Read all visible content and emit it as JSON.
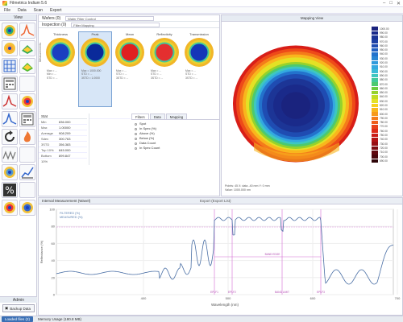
{
  "window": {
    "title": "Filmetrics Indium 5.6",
    "controls": [
      "–",
      "□",
      "✕"
    ]
  },
  "menu": [
    "File",
    "Data",
    "Scan",
    "Export"
  ],
  "sidebar": {
    "header": "View",
    "admin_label": "Admin",
    "backup_label": "Backup Data",
    "tools": [
      {
        "icon": "wafer-map-icon",
        "color": "#2a7"
      },
      {
        "icon": "spectrum-peak-icon",
        "color": "#e63"
      },
      {
        "icon": "wafer-map-icon",
        "color": "#fa3"
      },
      {
        "icon": "surface-3d-icon",
        "color": "#3a5"
      },
      {
        "icon": "grid-map-icon",
        "color": "#36c"
      },
      {
        "icon": "surface-3d-icon",
        "color": "#5b3"
      },
      {
        "icon": "table-icon",
        "color": "#555"
      },
      {
        "icon": "blank-icon",
        "color": "#ccc"
      },
      {
        "icon": "spectrum-small-icon",
        "color": "#c33"
      },
      {
        "icon": "wafer-map-icon",
        "color": "#e33"
      },
      {
        "icon": "spectrum-small-icon",
        "color": "#36c"
      },
      {
        "icon": "calc-icon",
        "color": "#555"
      },
      {
        "icon": "refresh-icon",
        "color": "#333"
      },
      {
        "icon": "flame-icon",
        "color": "#e73"
      },
      {
        "icon": "wave-icon",
        "color": "#777"
      },
      {
        "icon": "blank-icon",
        "color": "#ccc"
      },
      {
        "icon": "wafer-outline-icon",
        "color": "#59c"
      },
      {
        "icon": "chart-icon",
        "color": "#36c"
      },
      {
        "icon": "percent-icon",
        "color": "#333"
      },
      {
        "icon": "blank-icon",
        "color": "#ccc"
      },
      {
        "icon": "wafer-map-icon",
        "color": "#e33"
      },
      {
        "icon": "wafer-map-icon",
        "color": "#36c"
      }
    ]
  },
  "left": {
    "wafers_label": "Wafers (0)",
    "wafer_value": "Wafer Filter Control",
    "inspection_label": "Inspection (0)",
    "inspection_value": "Filter Mapping",
    "side_label": "Measurements",
    "maps": [
      {
        "caption": "Thickness",
        "core": "#1a3fc0",
        "stats": [
          "Max = ...",
          "Min = ...",
          "STD = ..."
        ]
      },
      {
        "caption": "Peak",
        "core": "#0a2a9a",
        "stats": [
          "Max = 1000.000",
          "STD = ...",
          "3STD = 1.0000"
        ]
      },
      {
        "caption": "Mean",
        "core": "#e02020",
        "stats": [
          "Max = ...",
          "STD = ...",
          "3STD = ..."
        ]
      },
      {
        "caption": "Reflectivity",
        "core": "#e33030",
        "stats": [
          "Max = ...",
          "STD = ...",
          "3STD = ..."
        ]
      },
      {
        "caption": "Transmission",
        "core": "#1536b8",
        "stats": [
          "Max = ...",
          "STD = ...",
          "3STD = ..."
        ]
      }
    ],
    "table_header": "Stat",
    "table_rows": [
      {
        "k": "Min",
        "v": "836.000"
      },
      {
        "k": "Max",
        "v": "1.00000"
      },
      {
        "k": "Average",
        "v": "908.209"
      },
      {
        "k": "Sdev",
        "v": "300.763"
      },
      {
        "k": "3STD",
        "v": "356.383"
      },
      {
        "k": "Top 10%",
        "v": "845.000"
      },
      {
        "k": "Bottom 10%",
        "v": "899.847"
      }
    ],
    "tabs": [
      "Filters",
      "Data",
      "Mapping"
    ],
    "options": [
      "Spot",
      "In Spec (%)",
      "Above (%)",
      "Below (%)",
      "Data Count",
      "In Spec Count"
    ]
  },
  "map": {
    "header": "Mapping View",
    "footer": [
      "Points: 45  X: data  -40 mm  Y: 0 mm",
      "Value: 1000.000 nm"
    ],
    "legend": [
      {
        "c": "#1a237e",
        "l": "1000.00"
      },
      {
        "c": "#1a2a8a",
        "l": "990.00"
      },
      {
        "c": "#1c3596",
        "l": "980.00"
      },
      {
        "c": "#1e40a4",
        "l": "970.00"
      },
      {
        "c": "#1f4cb2",
        "l": "960.00"
      },
      {
        "c": "#2160c2",
        "l": "950.00"
      },
      {
        "c": "#2372cc",
        "l": "940.00"
      },
      {
        "c": "#2a86d4",
        "l": "930.00"
      },
      {
        "c": "#2f9adb",
        "l": "920.00"
      },
      {
        "c": "#33a9e0",
        "l": "910.00"
      },
      {
        "c": "#3bbbd8",
        "l": "900.00"
      },
      {
        "c": "#3ec7c0",
        "l": "890.00"
      },
      {
        "c": "#42c99c",
        "l": "880.00"
      },
      {
        "c": "#4cc96f",
        "l": "870.00"
      },
      {
        "c": "#6bcc3e",
        "l": "860.00"
      },
      {
        "c": "#95d22d",
        "l": "850.00"
      },
      {
        "c": "#c0dc26",
        "l": "840.00"
      },
      {
        "c": "#e4e125",
        "l": "830.00"
      },
      {
        "c": "#f7d21f",
        "l": "820.00"
      },
      {
        "c": "#f9b61d",
        "l": "810.00"
      },
      {
        "c": "#f79a1b",
        "l": "800.00"
      },
      {
        "c": "#f47c1a",
        "l": "790.00"
      },
      {
        "c": "#ef5d1a",
        "l": "780.00"
      },
      {
        "c": "#e84019",
        "l": "770.00"
      },
      {
        "c": "#dd2a18",
        "l": "760.00"
      },
      {
        "c": "#c91c18",
        "l": "750.00"
      },
      {
        "c": "#b31416",
        "l": "740.00"
      },
      {
        "c": "#980f14",
        "l": "730.00"
      },
      {
        "c": "#7c0c12",
        "l": "720.00"
      },
      {
        "c": "#60090f",
        "l": "710.00"
      },
      {
        "c": "#4a070c",
        "l": "700.00"
      },
      {
        "c": "#2e0508",
        "l": "690.00"
      }
    ]
  },
  "spectrum": {
    "header": "Interval Measurement (Wavel)",
    "center_label": "Export (Export List)",
    "legend_lines": [
      "FILTERED (%)",
      "MEASURED (%)"
    ],
    "y_ticks": [
      "100",
      "80",
      "60",
      "40",
      "20",
      "0"
    ],
    "x_ticks": [
      "400",
      "500",
      "600",
      "700"
    ],
    "ylabel": "Reflectance (%)",
    "xlabel": "Wavelength (nm)",
    "markers": [
      "EPLF1",
      "EPLF2",
      "BAND LIMIT",
      "EPLF3"
    ],
    "annotation": "BAND EDGE"
  },
  "status": {
    "button": "Loaded files (2)",
    "text": "Memory Usage (180.8 MB)"
  }
}
